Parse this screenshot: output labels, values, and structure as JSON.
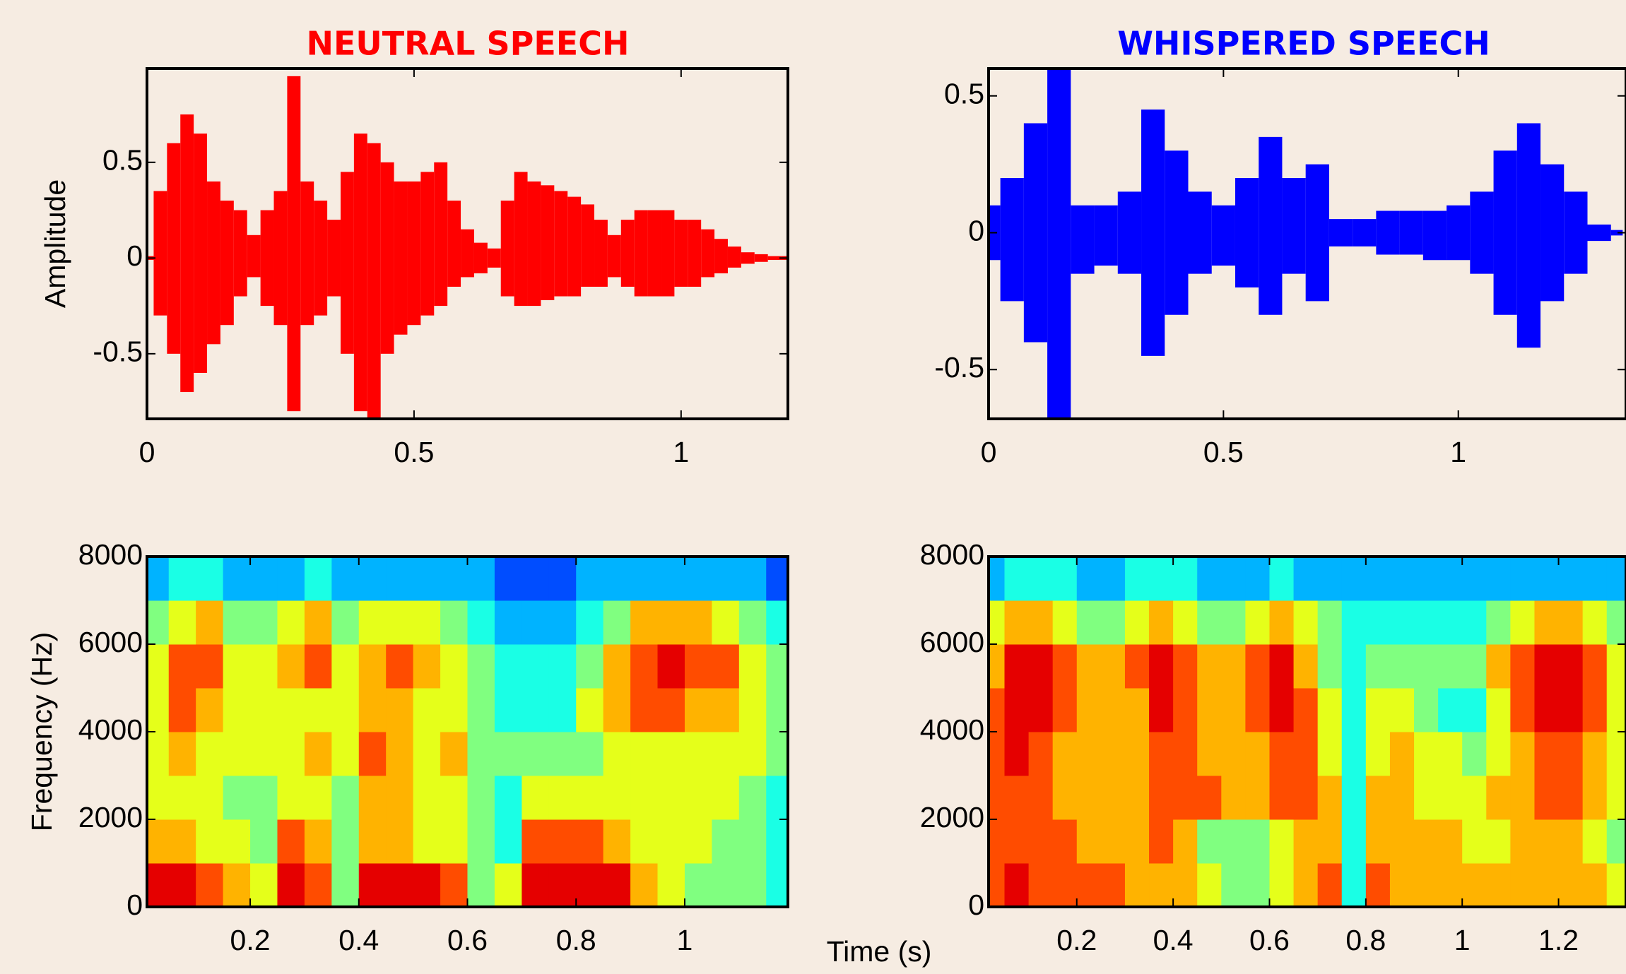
{
  "chart_data": [
    {
      "type": "waveform",
      "title": "NEUTRAL SPEECH",
      "color": "#ff0000",
      "y_label": "Amplitude",
      "x": [
        0,
        0.025,
        0.05,
        0.075,
        0.1,
        0.125,
        0.15,
        0.175,
        0.2,
        0.225,
        0.25,
        0.275,
        0.3,
        0.325,
        0.35,
        0.375,
        0.4,
        0.425,
        0.45,
        0.475,
        0.5,
        0.525,
        0.55,
        0.575,
        0.6,
        0.625,
        0.65,
        0.675,
        0.7,
        0.725,
        0.75,
        0.775,
        0.8,
        0.825,
        0.85,
        0.875,
        0.9,
        0.925,
        0.95,
        0.975,
        1,
        1.025,
        1.05,
        1.075,
        1.1,
        1.125,
        1.15,
        1.175,
        1.2
      ],
      "values_max": [
        0.01,
        0.35,
        0.6,
        0.75,
        0.65,
        0.4,
        0.3,
        0.25,
        0.12,
        0.25,
        0.35,
        0.95,
        0.4,
        0.3,
        0.2,
        0.45,
        0.65,
        0.6,
        0.5,
        0.4,
        0.4,
        0.45,
        0.5,
        0.3,
        0.15,
        0.08,
        0.05,
        0.3,
        0.45,
        0.4,
        0.38,
        0.35,
        0.32,
        0.28,
        0.2,
        0.12,
        0.2,
        0.25,
        0.25,
        0.25,
        0.2,
        0.2,
        0.15,
        0.1,
        0.06,
        0.03,
        0.02,
        0.01,
        0.01
      ],
      "values_min": [
        -0.01,
        -0.3,
        -0.5,
        -0.7,
        -0.6,
        -0.45,
        -0.35,
        -0.2,
        -0.1,
        -0.25,
        -0.35,
        -0.8,
        -0.35,
        -0.3,
        -0.2,
        -0.5,
        -0.8,
        -0.85,
        -0.5,
        -0.4,
        -0.35,
        -0.3,
        -0.25,
        -0.15,
        -0.1,
        -0.08,
        -0.05,
        -0.2,
        -0.25,
        -0.25,
        -0.22,
        -0.2,
        -0.2,
        -0.15,
        -0.15,
        -0.1,
        -0.15,
        -0.2,
        -0.2,
        -0.2,
        -0.15,
        -0.15,
        -0.1,
        -0.08,
        -0.05,
        -0.03,
        -0.02,
        -0.01,
        -0.01
      ],
      "xlim": [
        0,
        1.2
      ],
      "ylim": [
        -0.84,
        0.99
      ],
      "xticks": [
        0,
        0.5,
        1
      ],
      "yticks": [
        -0.5,
        0,
        0.5
      ]
    },
    {
      "type": "waveform",
      "title": "WHISPERED SPEECH",
      "color": "#0000ff",
      "x": [
        0,
        0.05,
        0.1,
        0.15,
        0.2,
        0.25,
        0.3,
        0.35,
        0.4,
        0.45,
        0.5,
        0.55,
        0.6,
        0.65,
        0.7,
        0.75,
        0.8,
        0.85,
        0.9,
        0.95,
        1,
        1.05,
        1.1,
        1.15,
        1.2,
        1.25,
        1.3,
        1.35
      ],
      "values_max": [
        0.1,
        0.2,
        0.4,
        0.6,
        0.1,
        0.1,
        0.15,
        0.45,
        0.3,
        0.15,
        0.1,
        0.2,
        0.35,
        0.2,
        0.25,
        0.05,
        0.05,
        0.08,
        0.08,
        0.08,
        0.1,
        0.15,
        0.3,
        0.4,
        0.25,
        0.15,
        0.03,
        0.01
      ],
      "values_min": [
        -0.1,
        -0.25,
        -0.4,
        -0.68,
        -0.15,
        -0.12,
        -0.15,
        -0.45,
        -0.3,
        -0.15,
        -0.12,
        -0.2,
        -0.3,
        -0.15,
        -0.25,
        -0.05,
        -0.05,
        -0.08,
        -0.08,
        -0.1,
        -0.1,
        -0.15,
        -0.3,
        -0.42,
        -0.25,
        -0.15,
        -0.03,
        -0.01
      ],
      "xlim": [
        0,
        1.357
      ],
      "ylim": [
        -0.68,
        0.6
      ],
      "xticks": [
        0,
        0.5,
        1
      ],
      "yticks": [
        -0.5,
        0,
        0.5
      ]
    },
    {
      "type": "heatmap",
      "y_label": "Frequency (Hz)",
      "x_label": "Time (s)",
      "colormap": "jet",
      "zlim": [
        0,
        10
      ],
      "x": [
        0.025,
        0.075,
        0.125,
        0.175,
        0.225,
        0.275,
        0.325,
        0.375,
        0.425,
        0.475,
        0.525,
        0.575,
        0.625,
        0.675,
        0.725,
        0.775,
        0.825,
        0.875,
        0.925,
        0.975,
        1.025,
        1.075,
        1.125,
        1.175
      ],
      "y": [
        500,
        1500,
        2500,
        3500,
        4500,
        5500,
        6500,
        7500
      ],
      "values": [
        [
          9,
          9,
          8,
          7,
          6,
          9,
          8,
          5,
          9,
          9,
          9,
          8,
          5,
          6,
          9,
          9,
          9,
          9,
          7,
          6,
          5,
          5,
          5,
          4
        ],
        [
          7,
          7,
          6,
          6,
          5,
          8,
          7,
          5,
          7,
          7,
          6,
          6,
          5,
          4,
          8,
          8,
          8,
          7,
          6,
          6,
          6,
          5,
          5,
          4
        ],
        [
          6,
          6,
          6,
          5,
          5,
          6,
          6,
          5,
          7,
          7,
          6,
          6,
          5,
          4,
          6,
          6,
          6,
          6,
          6,
          6,
          6,
          6,
          5,
          4
        ],
        [
          6,
          7,
          6,
          6,
          6,
          6,
          7,
          6,
          8,
          7,
          6,
          7,
          5,
          5,
          5,
          5,
          5,
          6,
          6,
          6,
          6,
          6,
          6,
          5
        ],
        [
          6,
          8,
          7,
          6,
          6,
          6,
          6,
          6,
          7,
          7,
          6,
          6,
          5,
          4,
          4,
          4,
          6,
          7,
          8,
          8,
          7,
          7,
          6,
          5
        ],
        [
          6,
          8,
          8,
          6,
          6,
          7,
          8,
          6,
          7,
          8,
          7,
          6,
          5,
          4,
          4,
          4,
          5,
          7,
          8,
          9,
          8,
          8,
          6,
          5
        ],
        [
          5,
          6,
          7,
          5,
          5,
          6,
          7,
          5,
          6,
          6,
          6,
          5,
          4,
          3,
          3,
          3,
          4,
          5,
          7,
          7,
          7,
          6,
          5,
          4
        ],
        [
          3,
          4,
          4,
          3,
          3,
          3,
          4,
          3,
          3,
          3,
          3,
          3,
          3,
          2,
          2,
          2,
          3,
          3,
          3,
          3,
          3,
          3,
          3,
          2
        ]
      ],
      "xlim": [
        0.01,
        1.19
      ],
      "ylim": [
        0,
        8000
      ],
      "xticks": [
        0.2,
        0.4,
        0.6,
        0.8,
        1
      ],
      "yticks": [
        0,
        2000,
        4000,
        6000,
        8000
      ]
    },
    {
      "type": "heatmap",
      "colormap": "jet",
      "zlim": [
        0,
        10
      ],
      "x": [
        0.025,
        0.075,
        0.125,
        0.175,
        0.225,
        0.275,
        0.325,
        0.375,
        0.425,
        0.475,
        0.525,
        0.575,
        0.625,
        0.675,
        0.725,
        0.775,
        0.825,
        0.875,
        0.925,
        0.975,
        1.025,
        1.075,
        1.125,
        1.175,
        1.225,
        1.275,
        1.325
      ],
      "y": [
        500,
        1500,
        2500,
        3500,
        4500,
        5500,
        6500,
        7500
      ],
      "values": [
        [
          8,
          9,
          8,
          8,
          8,
          8,
          7,
          7,
          7,
          6,
          5,
          5,
          6,
          7,
          8,
          4,
          8,
          7,
          7,
          7,
          7,
          7,
          7,
          7,
          7,
          7,
          6
        ],
        [
          8,
          8,
          8,
          8,
          7,
          7,
          7,
          8,
          7,
          5,
          5,
          5,
          6,
          7,
          7,
          4,
          7,
          7,
          7,
          7,
          6,
          6,
          7,
          7,
          7,
          6,
          5
        ],
        [
          8,
          8,
          8,
          7,
          7,
          7,
          7,
          8,
          8,
          8,
          7,
          7,
          8,
          8,
          7,
          4,
          7,
          7,
          6,
          6,
          6,
          7,
          7,
          8,
          8,
          7,
          6
        ],
        [
          8,
          9,
          8,
          7,
          7,
          7,
          7,
          8,
          8,
          7,
          7,
          7,
          8,
          8,
          6,
          4,
          6,
          7,
          6,
          6,
          5,
          6,
          7,
          8,
          8,
          7,
          6
        ],
        [
          8,
          9,
          9,
          8,
          7,
          7,
          7,
          9,
          8,
          7,
          7,
          8,
          9,
          8,
          6,
          4,
          6,
          6,
          5,
          4,
          4,
          6,
          8,
          9,
          9,
          8,
          6
        ],
        [
          7,
          9,
          9,
          8,
          7,
          7,
          8,
          9,
          8,
          7,
          7,
          8,
          9,
          7,
          5,
          4,
          5,
          5,
          5,
          5,
          5,
          7,
          8,
          9,
          9,
          8,
          6
        ],
        [
          6,
          7,
          7,
          6,
          5,
          5,
          6,
          7,
          6,
          5,
          5,
          6,
          7,
          6,
          5,
          4,
          4,
          4,
          4,
          4,
          4,
          5,
          6,
          7,
          7,
          6,
          5
        ],
        [
          3,
          4,
          4,
          4,
          3,
          3,
          4,
          4,
          4,
          3,
          3,
          3,
          4,
          3,
          3,
          3,
          3,
          3,
          3,
          3,
          3,
          3,
          3,
          3,
          3,
          3,
          3
        ]
      ],
      "xlim": [
        0.017,
        1.34
      ],
      "ylim": [
        0,
        8000
      ],
      "xticks": [
        0.2,
        0.4,
        0.6,
        0.8,
        1,
        1.2
      ],
      "yticks": [
        0,
        2000,
        4000,
        6000,
        8000
      ]
    }
  ]
}
